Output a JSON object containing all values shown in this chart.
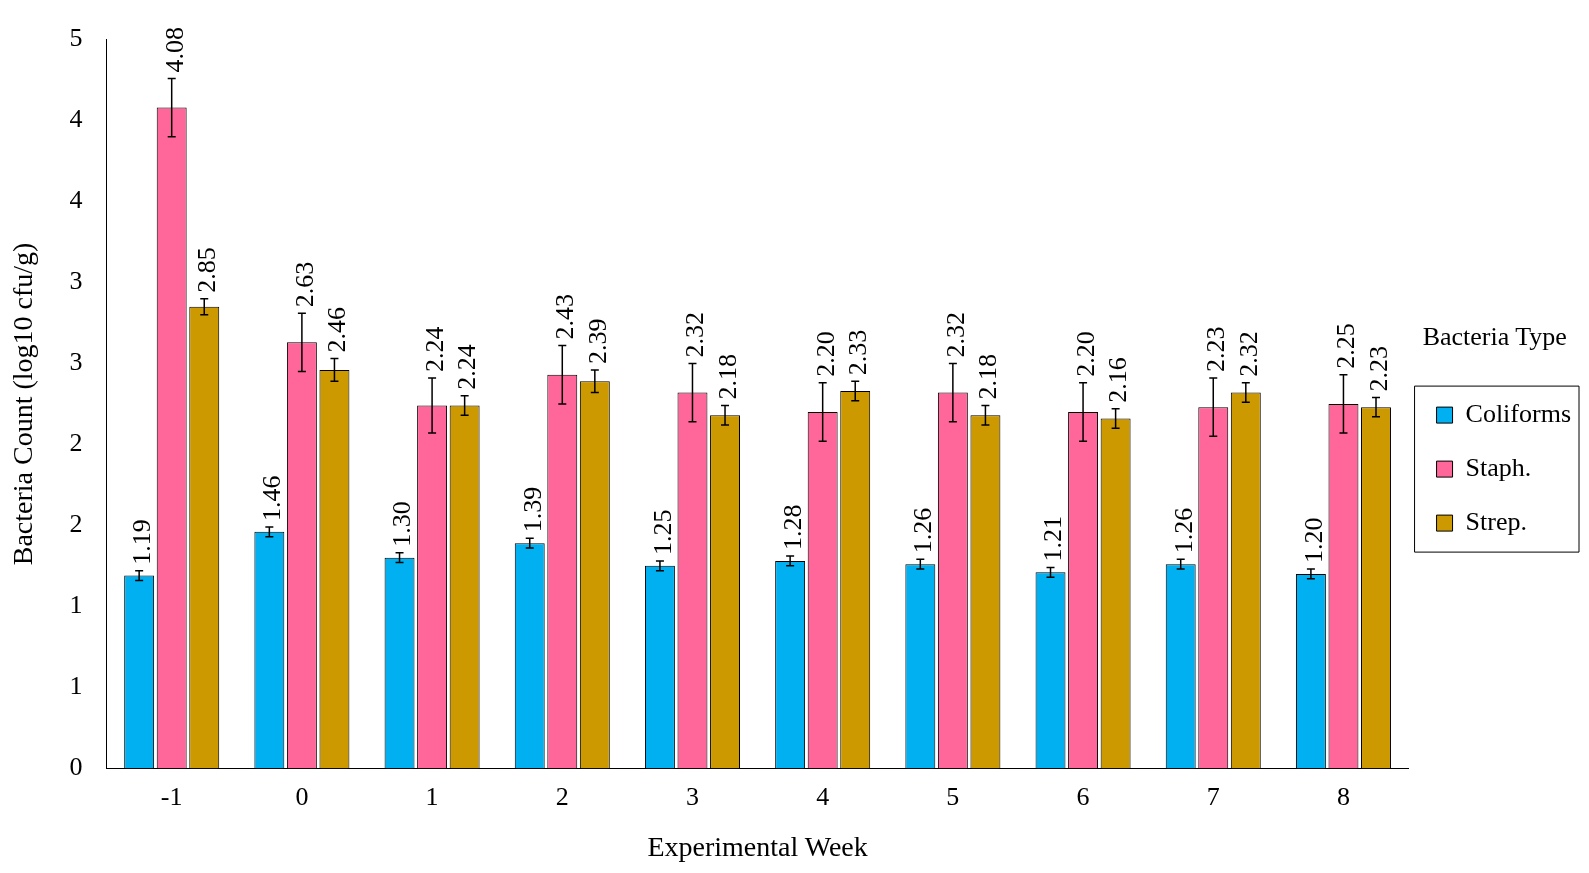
{
  "chart_data": {
    "type": "bar",
    "xlabel": "Experimental Week",
    "ylabel": "Bacteria Count (log10 cfu/g)",
    "legend_title": "Bacteria Type",
    "categories": [
      "-1",
      "0",
      "1",
      "2",
      "3",
      "4",
      "5",
      "6",
      "7",
      "8"
    ],
    "series": [
      {
        "name": "Coliforms",
        "color": "#00b0f0",
        "values": [
          1.19,
          1.46,
          1.3,
          1.39,
          1.25,
          1.28,
          1.26,
          1.21,
          1.26,
          1.2
        ],
        "errors": [
          0.03,
          0.03,
          0.03,
          0.03,
          0.03,
          0.03,
          0.03,
          0.03,
          0.03,
          0.03
        ],
        "value_labels": [
          "1.19",
          "1.46",
          "1.30",
          "1.39",
          "1.25",
          "1.28",
          "1.26",
          "1.21",
          "1.26",
          "1.20"
        ]
      },
      {
        "name": "Staph.",
        "color": "#ff6699",
        "values": [
          4.08,
          2.63,
          2.24,
          2.43,
          2.32,
          2.2,
          2.32,
          2.2,
          2.23,
          2.25
        ],
        "errors": [
          0.18,
          0.18,
          0.17,
          0.18,
          0.18,
          0.18,
          0.18,
          0.18,
          0.18,
          0.18
        ],
        "value_labels": [
          "4.08",
          "2.63",
          "2.24",
          "2.43",
          "2.32",
          "2.20",
          "2.32",
          "2.20",
          "2.23",
          "2.25"
        ]
      },
      {
        "name": "Strep.",
        "color": "#cc9900",
        "values": [
          2.85,
          2.46,
          2.24,
          2.39,
          2.18,
          2.33,
          2.18,
          2.16,
          2.32,
          2.23
        ],
        "errors": [
          0.05,
          0.07,
          0.06,
          0.07,
          0.06,
          0.06,
          0.06,
          0.06,
          0.06,
          0.06
        ],
        "value_labels": [
          "2.85",
          "2.46",
          "2.24",
          "2.39",
          "2.18",
          "2.33",
          "2.18",
          "2.16",
          "2.32",
          "2.23"
        ]
      }
    ],
    "ylim": [
      0,
      4.5
    ],
    "yticks": [
      0,
      {
        "value": 0.5,
        "label": "1"
      },
      1,
      {
        "value": 1.5,
        "label": "2"
      },
      2,
      {
        "value": 2.5,
        "label": "3"
      },
      3,
      {
        "value": 3.5,
        "label": "4"
      },
      4,
      {
        "value": 4.5,
        "label": "5"
      }
    ],
    "grid": false,
    "legend": "right"
  }
}
